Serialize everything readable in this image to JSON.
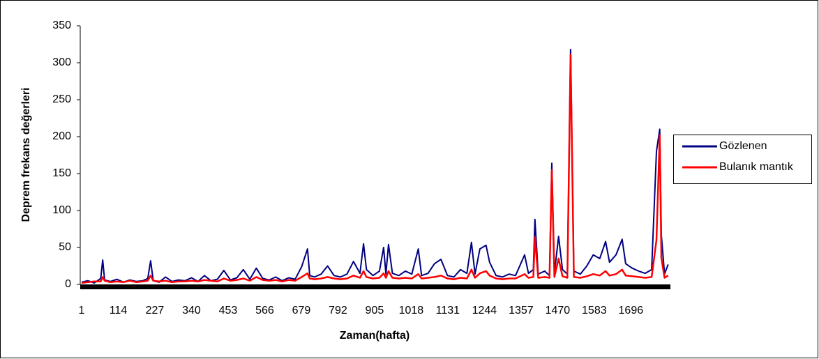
{
  "chart_data": {
    "type": "line",
    "x_label": "Zaman(hafta)",
    "y_label": "Deprem frekans değerleri",
    "x": [
      1,
      20,
      40,
      60,
      66,
      72,
      90,
      110,
      130,
      150,
      170,
      190,
      205,
      214,
      222,
      240,
      260,
      280,
      300,
      320,
      340,
      360,
      380,
      400,
      420,
      440,
      460,
      480,
      500,
      520,
      540,
      560,
      580,
      600,
      620,
      640,
      660,
      680,
      698,
      705,
      720,
      740,
      760,
      780,
      800,
      820,
      840,
      860,
      871,
      880,
      900,
      920,
      933,
      940,
      948,
      960,
      980,
      1000,
      1020,
      1040,
      1050,
      1070,
      1090,
      1110,
      1130,
      1150,
      1170,
      1190,
      1204,
      1215,
      1230,
      1249,
      1260,
      1280,
      1300,
      1320,
      1340,
      1368,
      1380,
      1395,
      1400,
      1410,
      1430,
      1445,
      1452,
      1460,
      1473,
      1485,
      1500,
      1510,
      1520,
      1540,
      1560,
      1580,
      1600,
      1618,
      1630,
      1650,
      1669,
      1680,
      1700,
      1720,
      1740,
      1760,
      1775,
      1785,
      1790,
      1800,
      1811
    ],
    "series": [
      {
        "name": "Gözlenen",
        "color": "#000080",
        "values": [
          3,
          5,
          2,
          8,
          33,
          6,
          4,
          7,
          3,
          6,
          4,
          5,
          8,
          32,
          5,
          3,
          10,
          4,
          6,
          5,
          9,
          4,
          12,
          5,
          7,
          19,
          6,
          9,
          20,
          7,
          22,
          8,
          6,
          10,
          5,
          9,
          7,
          24,
          48,
          12,
          10,
          14,
          25,
          12,
          10,
          14,
          31,
          15,
          55,
          20,
          12,
          18,
          50,
          14,
          54,
          15,
          12,
          18,
          14,
          48,
          12,
          15,
          28,
          34,
          12,
          10,
          20,
          15,
          57,
          14,
          48,
          53,
          30,
          12,
          10,
          14,
          12,
          40,
          15,
          20,
          88,
          14,
          18,
          12,
          164,
          15,
          65,
          20,
          14,
          318,
          18,
          14,
          25,
          40,
          35,
          58,
          30,
          40,
          61,
          28,
          22,
          18,
          15,
          20,
          180,
          210,
          67,
          14,
          27
        ]
      },
      {
        "name": "Bulanık mantık",
        "color": "#ff0000",
        "values": [
          2,
          3,
          4,
          4,
          10,
          5,
          3,
          4,
          3,
          5,
          3,
          4,
          5,
          12,
          5,
          4,
          5,
          3,
          4,
          4,
          5,
          4,
          6,
          5,
          4,
          8,
          5,
          6,
          8,
          5,
          10,
          6,
          5,
          6,
          4,
          6,
          5,
          10,
          15,
          8,
          7,
          8,
          10,
          8,
          7,
          8,
          12,
          9,
          18,
          10,
          8,
          9,
          15,
          9,
          18,
          9,
          8,
          9,
          8,
          14,
          8,
          9,
          10,
          12,
          8,
          7,
          9,
          8,
          20,
          9,
          15,
          18,
          12,
          8,
          7,
          8,
          8,
          14,
          9,
          10,
          64,
          9,
          10,
          9,
          155,
          10,
          35,
          11,
          9,
          311,
          10,
          9,
          11,
          14,
          12,
          18,
          12,
          14,
          20,
          12,
          11,
          10,
          9,
          10,
          60,
          202,
          36,
          9,
          12
        ]
      }
    ],
    "xlim": [
      1,
      1818
    ],
    "xticks": [
      1,
      114,
      227,
      340,
      453,
      566,
      679,
      792,
      905,
      1018,
      1131,
      1244,
      1357,
      1470,
      1583,
      1696
    ],
    "ylim": [
      0,
      350
    ],
    "yticks": [
      0,
      50,
      100,
      150,
      200,
      250,
      300,
      350
    ],
    "grid": false,
    "legend": "right"
  }
}
